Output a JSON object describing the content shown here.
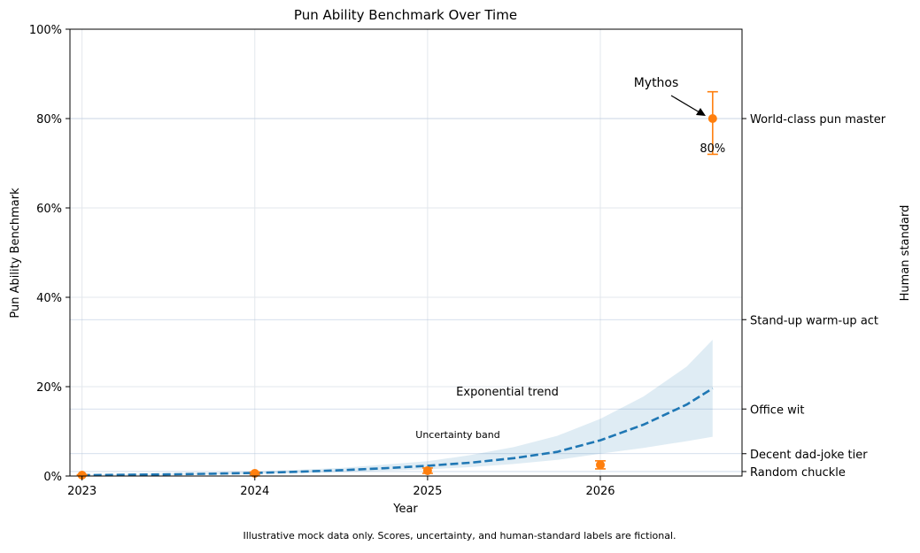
{
  "chart_data": {
    "type": "scatter",
    "title": "Pun Ability Benchmark Over Time",
    "xlabel": "Year",
    "ylabel": "Pun Ability Benchmark",
    "right_ylabel": "Human standard",
    "footnote": "Illustrative mock data only. Scores, uncertainty, and human-standard labels are fictional.",
    "xlim": [
      2022.93,
      2026.82
    ],
    "ylim": [
      0,
      100
    ],
    "x_ticks": [
      {
        "value": 2023,
        "label": "2023"
      },
      {
        "value": 2024,
        "label": "2024"
      },
      {
        "value": 2025,
        "label": "2025"
      },
      {
        "value": 2026,
        "label": "2026"
      }
    ],
    "y_ticks": [
      {
        "value": 0,
        "label": "0%"
      },
      {
        "value": 20,
        "label": "20%"
      },
      {
        "value": 40,
        "label": "40%"
      },
      {
        "value": 60,
        "label": "60%"
      },
      {
        "value": 80,
        "label": "80%"
      },
      {
        "value": 100,
        "label": "100%"
      }
    ],
    "human_standards": [
      {
        "value": 80,
        "label": "World-class pun master"
      },
      {
        "value": 35,
        "label": "Stand-up warm-up act"
      },
      {
        "value": 15,
        "label": "Office wit"
      },
      {
        "value": 5,
        "label": "Decent dad-joke tier"
      },
      {
        "value": 1,
        "label": "Random chuckle"
      }
    ],
    "trend": {
      "name": "Exponential trend",
      "x": [
        2023.0,
        2023.25,
        2023.5,
        2023.75,
        2024.0,
        2024.25,
        2024.5,
        2024.75,
        2025.0,
        2025.25,
        2025.5,
        2025.75,
        2026.0,
        2026.25,
        2026.5,
        2026.65
      ],
      "y": [
        0.2,
        0.28,
        0.38,
        0.52,
        0.7,
        0.95,
        1.3,
        1.75,
        2.3,
        3.0,
        4.0,
        5.4,
        8.0,
        11.5,
        16.0,
        19.6
      ]
    },
    "band": {
      "name": "Uncertainty band",
      "x": [
        2023.0,
        2023.5,
        2024.0,
        2024.5,
        2025.0,
        2025.25,
        2025.5,
        2025.75,
        2026.0,
        2026.25,
        2026.5,
        2026.65
      ],
      "lower": [
        0.15,
        0.25,
        0.45,
        0.85,
        1.5,
        2.0,
        2.7,
        3.6,
        5.0,
        6.3,
        7.8,
        8.8
      ],
      "upper": [
        0.3,
        0.55,
        1.0,
        1.8,
        3.3,
        4.7,
        6.5,
        9.0,
        12.8,
        17.8,
        24.5,
        30.5
      ]
    },
    "points": [
      {
        "x": 2023.0,
        "y": 0.2,
        "err_low": 0.1,
        "err_high": 0.1
      },
      {
        "x": 2024.0,
        "y": 0.6,
        "err_low": 0.3,
        "err_high": 0.3
      },
      {
        "x": 2025.0,
        "y": 1.2,
        "err_low": 0.6,
        "err_high": 0.6
      },
      {
        "x": 2026.0,
        "y": 2.5,
        "err_low": 0.9,
        "err_high": 0.9
      },
      {
        "x": 2026.65,
        "y": 80,
        "err_low": 8,
        "err_high": 6,
        "label": "80%"
      }
    ],
    "annotation": {
      "text": "Mythos",
      "target_x": 2026.65,
      "target_y": 80
    },
    "colors": {
      "trend": "#1f77b4",
      "band": "#1f77b4",
      "points": "#ff7f0e",
      "grid": "#b0c4de"
    }
  }
}
